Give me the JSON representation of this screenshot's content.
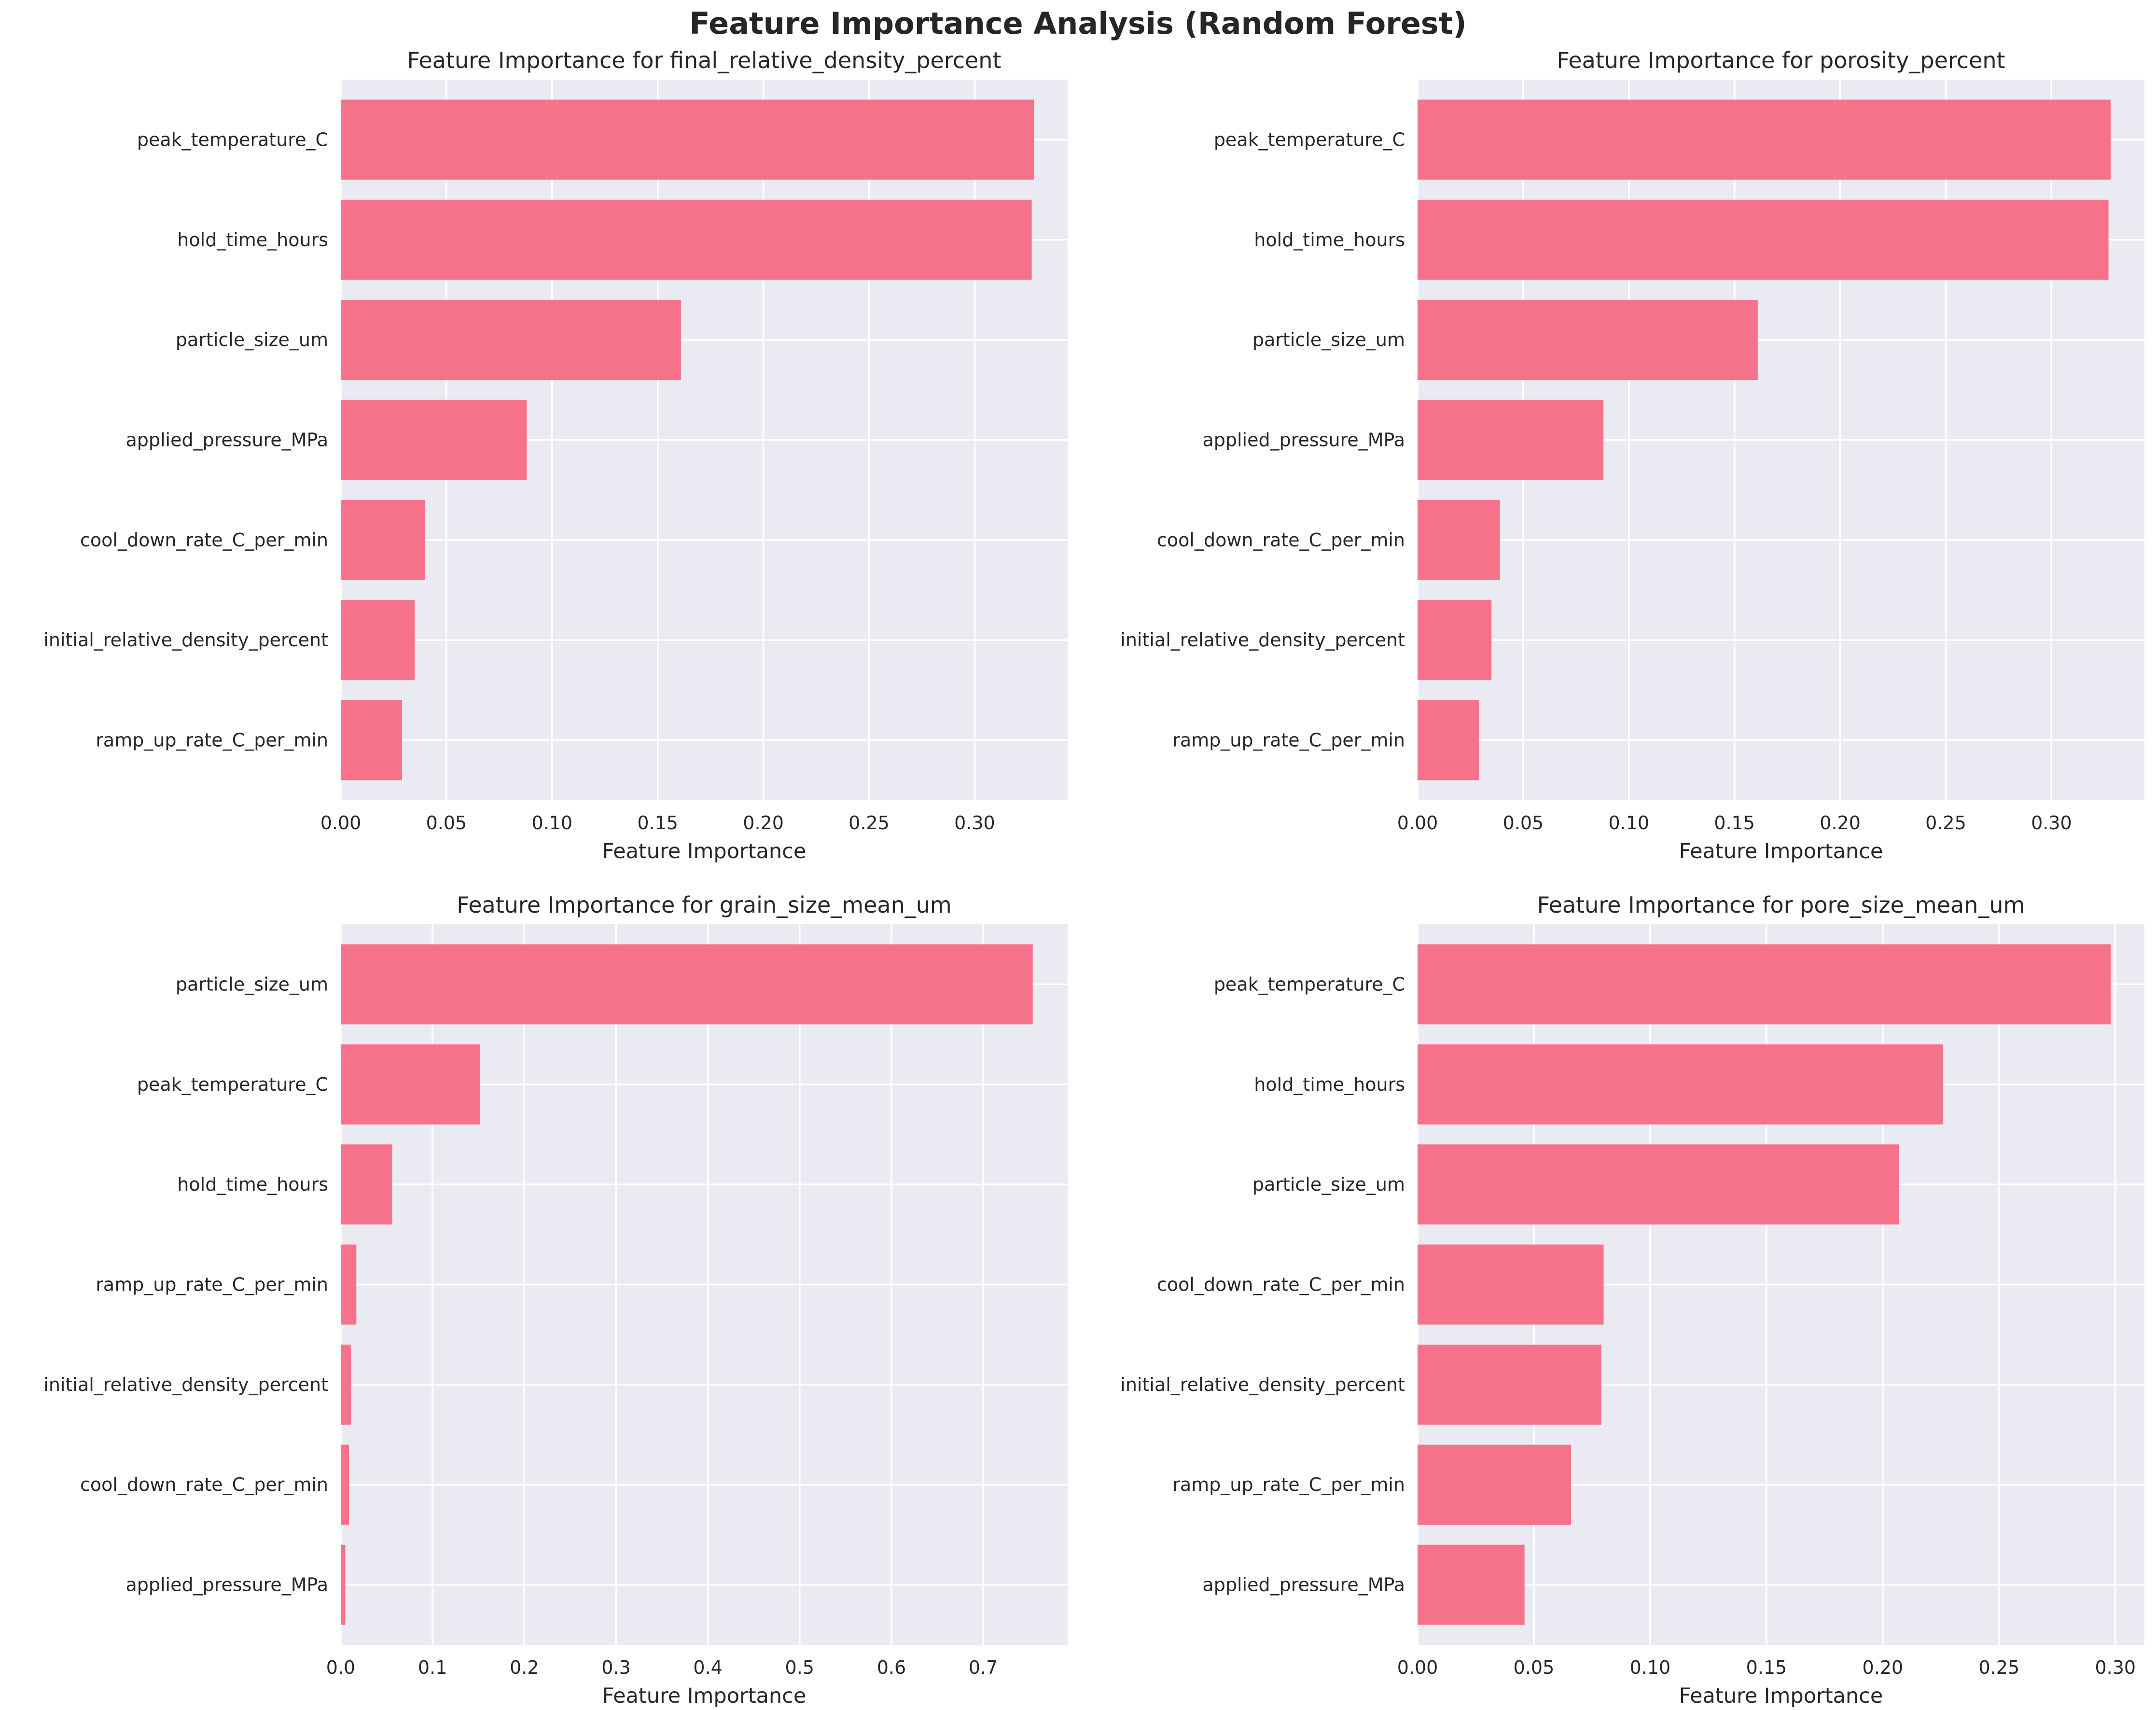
{
  "suptitle": "Feature Importance Analysis (Random Forest)",
  "colors": {
    "bar": "#F5728A",
    "plot_bg": "#EAEAF2",
    "grid": "#FFFFFF",
    "text": "#262626"
  },
  "chart_data": [
    {
      "type": "bar",
      "orientation": "horizontal",
      "title": "Feature Importance for final_relative_density_percent",
      "xlabel": "Feature Importance",
      "ylabel": "",
      "xlim": [
        0,
        0.344
      ],
      "xticks": [
        0.0,
        0.05,
        0.1,
        0.15,
        0.2,
        0.25,
        0.3
      ],
      "xtick_labels": [
        "0.00",
        "0.05",
        "0.10",
        "0.15",
        "0.20",
        "0.25",
        "0.30"
      ],
      "categories": [
        "peak_temperature_C",
        "hold_time_hours",
        "particle_size_um",
        "applied_pressure_MPa",
        "cool_down_rate_C_per_min",
        "initial_relative_density_percent",
        "ramp_up_rate_C_per_min"
      ],
      "values": [
        0.328,
        0.327,
        0.161,
        0.088,
        0.04,
        0.035,
        0.029
      ],
      "grid": true
    },
    {
      "type": "bar",
      "orientation": "horizontal",
      "title": "Feature Importance for porosity_percent",
      "xlabel": "Feature Importance",
      "ylabel": "",
      "xlim": [
        0,
        0.344
      ],
      "xticks": [
        0.0,
        0.05,
        0.1,
        0.15,
        0.2,
        0.25,
        0.3
      ],
      "xtick_labels": [
        "0.00",
        "0.05",
        "0.10",
        "0.15",
        "0.20",
        "0.25",
        "0.30"
      ],
      "categories": [
        "peak_temperature_C",
        "hold_time_hours",
        "particle_size_um",
        "applied_pressure_MPa",
        "cool_down_rate_C_per_min",
        "initial_relative_density_percent",
        "ramp_up_rate_C_per_min"
      ],
      "values": [
        0.328,
        0.327,
        0.161,
        0.088,
        0.039,
        0.035,
        0.029
      ],
      "grid": true
    },
    {
      "type": "bar",
      "orientation": "horizontal",
      "title": "Feature Importance for grain_size_mean_um",
      "xlabel": "Feature Importance",
      "ylabel": "",
      "xlim": [
        0,
        0.792
      ],
      "xticks": [
        0.0,
        0.1,
        0.2,
        0.3,
        0.4,
        0.5,
        0.6,
        0.7
      ],
      "xtick_labels": [
        "0.0",
        "0.1",
        "0.2",
        "0.3",
        "0.4",
        "0.5",
        "0.6",
        "0.7"
      ],
      "categories": [
        "particle_size_um",
        "peak_temperature_C",
        "hold_time_hours",
        "ramp_up_rate_C_per_min",
        "initial_relative_density_percent",
        "cool_down_rate_C_per_min",
        "applied_pressure_MPa"
      ],
      "values": [
        0.754,
        0.152,
        0.056,
        0.017,
        0.011,
        0.009,
        0.005
      ],
      "grid": true
    },
    {
      "type": "bar",
      "orientation": "horizontal",
      "title": "Feature Importance for pore_size_mean_um",
      "xlabel": "Feature Importance",
      "ylabel": "",
      "xlim": [
        0,
        0.3125
      ],
      "xticks": [
        0.0,
        0.05,
        0.1,
        0.15,
        0.2,
        0.25,
        0.3
      ],
      "xtick_labels": [
        "0.00",
        "0.05",
        "0.10",
        "0.15",
        "0.20",
        "0.25",
        "0.30"
      ],
      "categories": [
        "peak_temperature_C",
        "hold_time_hours",
        "particle_size_um",
        "cool_down_rate_C_per_min",
        "initial_relative_density_percent",
        "ramp_up_rate_C_per_min",
        "applied_pressure_MPa"
      ],
      "values": [
        0.298,
        0.226,
        0.207,
        0.08,
        0.079,
        0.066,
        0.046
      ],
      "grid": true
    }
  ]
}
